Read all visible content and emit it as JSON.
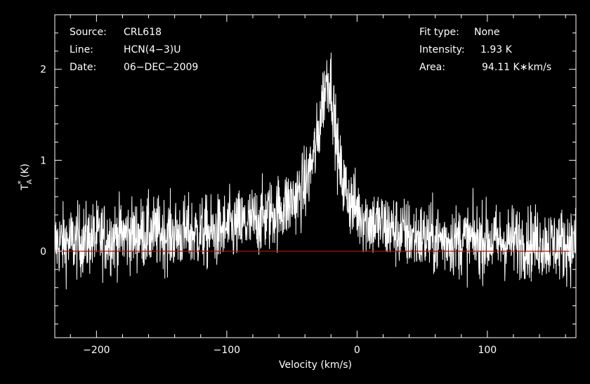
{
  "info": {
    "left": [
      {
        "key": "Source:",
        "value": "CRL618"
      },
      {
        "key": "Line:",
        "value": "HCN(4−3)U"
      },
      {
        "key": "Date:",
        "value": "06−DEC−2009"
      }
    ],
    "right": [
      {
        "key": "Fit type:",
        "value": "None"
      },
      {
        "key": "Intensity:",
        "value": "1.93 K"
      },
      {
        "key": "Area:",
        "value": "94.11 K∗km/s"
      }
    ]
  },
  "chart_data": {
    "type": "line",
    "xlabel": "Velocity (km/s)",
    "ylabel": {
      "main": "T",
      "sub": "A",
      "sup": "*",
      "unit": "(K)"
    },
    "xlim": [
      -232,
      168
    ],
    "ylim": [
      -0.95,
      2.6
    ],
    "xticks": [
      -200,
      -100,
      0,
      100
    ],
    "xtick_labels": [
      "−200",
      "−100",
      "0",
      "100"
    ],
    "yticks": [
      0,
      1,
      2
    ],
    "ytick_labels": [
      "0",
      "1",
      "2"
    ],
    "baseline": {
      "y": 0,
      "color": "#d00000"
    },
    "line_color": "#ffffff",
    "series": [
      {
        "x": [
          -230,
          -220,
          -210,
          -200,
          -190,
          -180,
          -170,
          -160,
          -150,
          -140,
          -130,
          -120,
          -110,
          -100,
          -90,
          -80,
          -70,
          -60,
          -50,
          -45,
          -40,
          -35,
          -30,
          -27,
          -24,
          -22,
          -20,
          -18,
          -16,
          -14,
          -10,
          -5,
          0,
          5,
          10,
          20,
          30,
          40,
          50,
          60,
          70,
          80,
          90,
          100,
          110,
          120,
          130,
          140,
          150,
          160,
          168
        ],
        "y": [
          0.1,
          0.1,
          0.12,
          0.15,
          0.15,
          0.18,
          0.18,
          0.2,
          0.2,
          0.18,
          0.2,
          0.2,
          0.2,
          0.25,
          0.28,
          0.32,
          0.38,
          0.45,
          0.55,
          0.62,
          0.72,
          0.95,
          1.25,
          1.6,
          1.85,
          1.93,
          1.85,
          1.55,
          1.25,
          0.95,
          0.72,
          0.55,
          0.45,
          0.38,
          0.33,
          0.28,
          0.22,
          0.18,
          0.15,
          0.13,
          0.13,
          0.12,
          0.12,
          0.12,
          0.1,
          0.12,
          0.1,
          0.1,
          0.08,
          0.08,
          0.08
        ]
      }
    ]
  }
}
